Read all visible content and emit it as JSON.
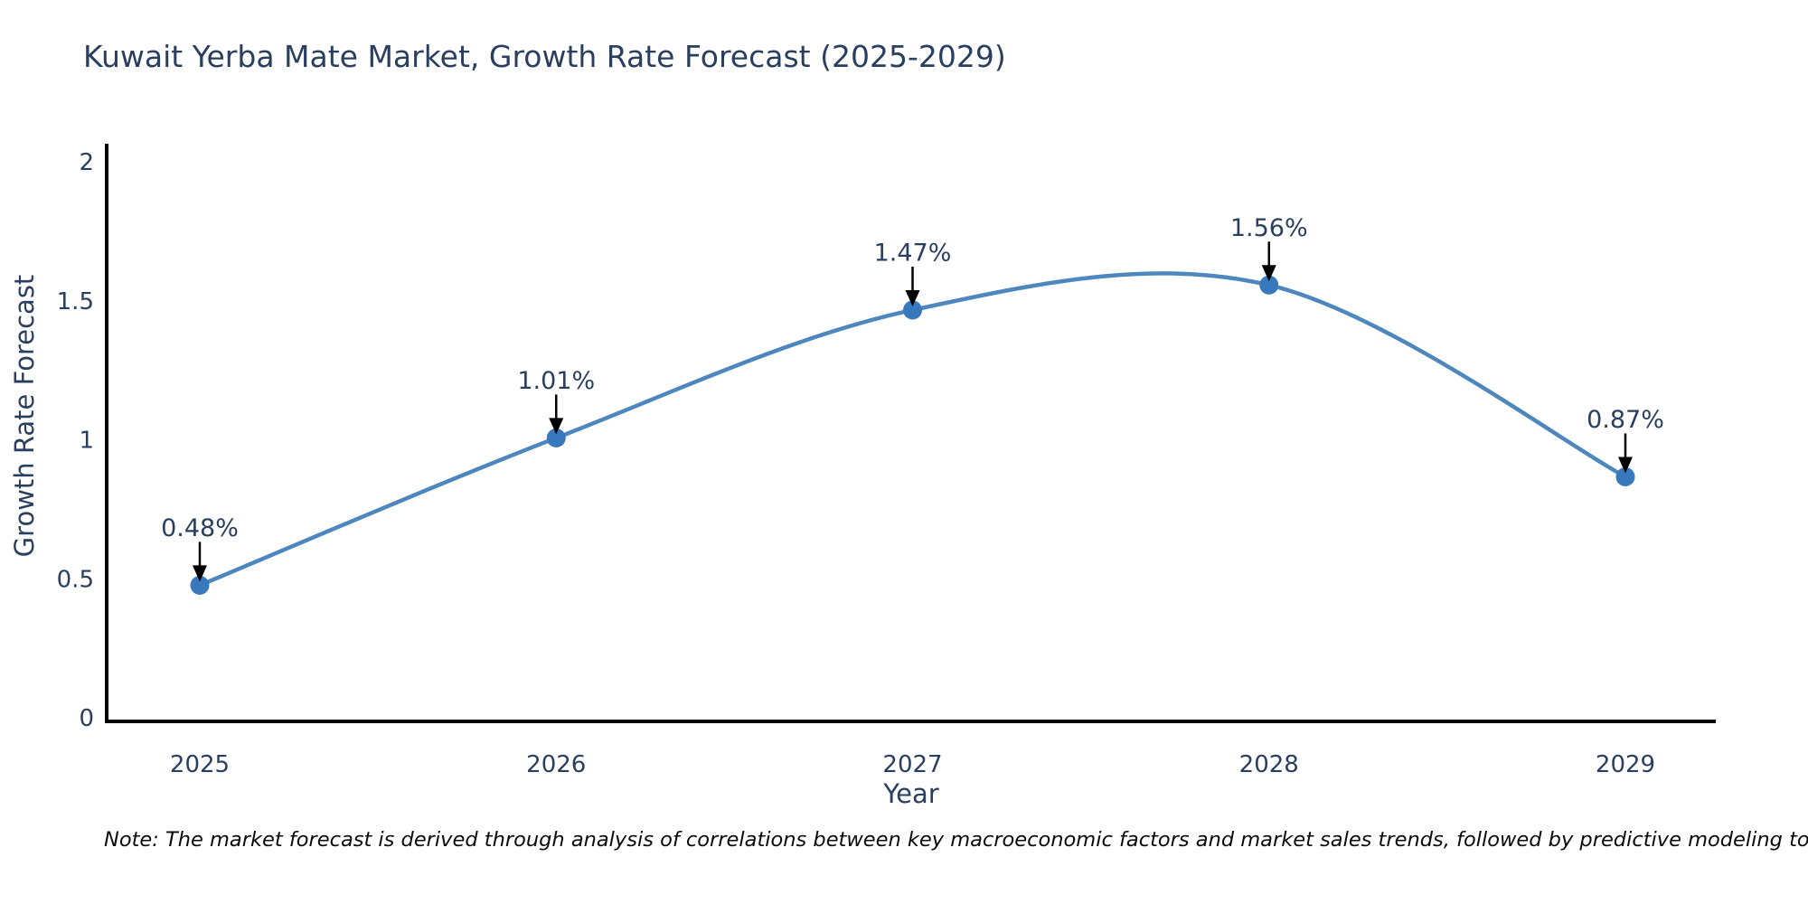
{
  "chart_data": {
    "type": "line",
    "title": "Kuwait Yerba Mate Market, Growth Rate Forecast (2025-2029)",
    "xlabel": "Year",
    "ylabel": "Growth Rate Forecast",
    "categories": [
      "2025",
      "2026",
      "2027",
      "2028",
      "2029"
    ],
    "series": [
      {
        "name": "Growth Rate Forecast",
        "values": [
          0.48,
          1.01,
          1.47,
          1.56,
          0.87
        ],
        "point_labels": [
          "0.48%",
          "1.01%",
          "1.47%",
          "1.56%",
          "0.87%"
        ]
      }
    ],
    "line_shape": "spline",
    "markers": true,
    "annotations_arrows": true,
    "yticks": [
      0,
      0.5,
      1,
      1.5,
      2
    ],
    "ytick_labels": [
      "0",
      "0.5",
      "1",
      "1.5",
      "2"
    ],
    "ylim": [
      0,
      2.07
    ],
    "grid": false,
    "legend_position": "none",
    "colors": {
      "line": "#4e87bd",
      "marker": "#3879bd",
      "text": "#2a3f5f",
      "axis": "#000000",
      "arrow": "#000000",
      "background": "#ffffff"
    },
    "note": "Note: The market forecast is derived through analysis of correlations between key macroeconomic factors and market sales trends, followed by predictive modeling to project future sales volumes."
  }
}
